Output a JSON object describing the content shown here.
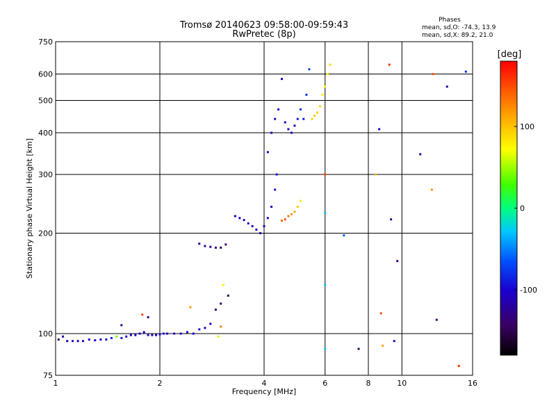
{
  "chart_data": {
    "type": "scatter",
    "title": "Tromsø 20140623 09:58:00-09:59:43",
    "subtitle": "RwPretec (8p)",
    "xlabel": "Frequency [MHz]",
    "ylabel": "Stationary phase Virtual Height [km]",
    "x_scale": "log",
    "y_scale": "log",
    "xlim": [
      1,
      16
    ],
    "ylim": [
      75,
      750
    ],
    "x_ticks": [
      1,
      2,
      4,
      6,
      8,
      10,
      16
    ],
    "y_ticks": [
      75,
      100,
      200,
      300,
      400,
      500,
      600,
      750
    ],
    "grid": true,
    "stats": {
      "title": "Phases",
      "line1": "mean, sd,O: -74.3, 13.9",
      "line2": "mean, sd,X:  89.2, 21.0"
    },
    "colorbar": {
      "label": "[deg]",
      "range": [
        -180,
        180
      ],
      "ticks": [
        100,
        0,
        -100
      ],
      "tick_labels": [
        "100",
        "0",
        "-100"
      ]
    },
    "series": [
      {
        "points": [
          [
            1.02,
            96,
            -150
          ],
          [
            1.05,
            98,
            -110
          ],
          [
            1.08,
            95,
            -110
          ],
          [
            1.12,
            95,
            -110
          ],
          [
            1.16,
            95,
            -105
          ],
          [
            1.2,
            95,
            -105
          ],
          [
            1.25,
            96,
            -100
          ],
          [
            1.3,
            95.5,
            -100
          ],
          [
            1.35,
            96,
            -100
          ],
          [
            1.4,
            96,
            -95
          ],
          [
            1.45,
            97,
            -90
          ],
          [
            1.5,
            98,
            40
          ],
          [
            1.55,
            97,
            -95
          ],
          [
            1.6,
            98,
            -100
          ],
          [
            1.65,
            99,
            -100
          ],
          [
            1.7,
            99,
            -100
          ],
          [
            1.75,
            100,
            -110
          ],
          [
            1.8,
            101,
            -100
          ],
          [
            1.85,
            99,
            -95
          ],
          [
            1.9,
            99,
            -110
          ],
          [
            1.95,
            99,
            -100
          ],
          [
            2.0,
            99.5,
            -105
          ],
          [
            2.05,
            100,
            -110
          ],
          [
            2.1,
            100,
            -100
          ],
          [
            2.2,
            100,
            -110
          ],
          [
            2.3,
            100,
            -110
          ],
          [
            2.4,
            101,
            -105
          ],
          [
            2.5,
            100,
            -100
          ],
          [
            2.6,
            103,
            -95
          ],
          [
            2.7,
            104,
            -100
          ],
          [
            2.8,
            107,
            -100
          ],
          [
            1.55,
            106,
            -120
          ],
          [
            1.85,
            112,
            -130
          ],
          [
            1.78,
            114,
            150
          ],
          [
            2.45,
            120,
            120
          ],
          [
            2.9,
            118,
            -140
          ],
          [
            3.0,
            123,
            -140
          ],
          [
            3.15,
            130,
            -150
          ],
          [
            3.0,
            105,
            130
          ],
          [
            2.95,
            98,
            60
          ],
          [
            3.05,
            140,
            80
          ],
          [
            2.6,
            186,
            -120
          ],
          [
            2.7,
            183,
            -125
          ],
          [
            2.8,
            182,
            -130
          ],
          [
            2.9,
            181,
            -140
          ],
          [
            3.0,
            181,
            -150
          ],
          [
            3.1,
            185,
            -135
          ],
          [
            3.3,
            225,
            -105
          ],
          [
            3.4,
            222,
            -100
          ],
          [
            3.5,
            219,
            -100
          ],
          [
            3.6,
            214,
            -100
          ],
          [
            3.7,
            210,
            -105
          ],
          [
            3.8,
            205,
            -110
          ],
          [
            3.9,
            200,
            -115
          ],
          [
            4.0,
            210,
            -115
          ],
          [
            4.1,
            222,
            -110
          ],
          [
            4.2,
            240,
            -105
          ],
          [
            4.3,
            270,
            -95
          ],
          [
            4.35,
            300,
            -90
          ],
          [
            4.1,
            350,
            -100
          ],
          [
            4.2,
            400,
            -110
          ],
          [
            4.3,
            440,
            -110
          ],
          [
            4.4,
            470,
            -100
          ],
          [
            4.5,
            580,
            -100
          ],
          [
            4.6,
            430,
            -100
          ],
          [
            4.7,
            410,
            -105
          ],
          [
            4.8,
            400,
            -110
          ],
          [
            4.9,
            420,
            -100
          ],
          [
            5.0,
            440,
            -90
          ],
          [
            5.1,
            470,
            -80
          ],
          [
            5.2,
            440,
            -90
          ],
          [
            5.3,
            520,
            -80
          ],
          [
            5.4,
            620,
            -70
          ],
          [
            4.5,
            218,
            140
          ],
          [
            4.6,
            220,
            150
          ],
          [
            4.7,
            225,
            130
          ],
          [
            4.8,
            228,
            120
          ],
          [
            4.9,
            232,
            110
          ],
          [
            5.0,
            240,
            95
          ],
          [
            5.1,
            250,
            80
          ],
          [
            5.5,
            440,
            90
          ],
          [
            5.6,
            450,
            95
          ],
          [
            5.7,
            460,
            95
          ],
          [
            5.8,
            480,
            90
          ],
          [
            5.9,
            520,
            80
          ],
          [
            6.0,
            550,
            75
          ],
          [
            6.1,
            600,
            75
          ],
          [
            6.2,
            640,
            90
          ],
          [
            6.0,
            140,
            -30
          ],
          [
            6.0,
            90,
            -30
          ],
          [
            6.0,
            230,
            -30
          ],
          [
            6.0,
            300,
            150
          ],
          [
            6.8,
            197,
            -60
          ],
          [
            7.5,
            90,
            -140
          ],
          [
            8.4,
            300,
            100
          ],
          [
            8.7,
            115,
            150
          ],
          [
            8.6,
            410,
            -100
          ],
          [
            8.8,
            92,
            110
          ],
          [
            9.2,
            640,
            160
          ],
          [
            9.3,
            220,
            -120
          ],
          [
            9.5,
            95,
            -110
          ],
          [
            9.7,
            165,
            -130
          ],
          [
            11.3,
            345,
            -120
          ],
          [
            12.3,
            600,
            150
          ],
          [
            12.6,
            110,
            -140
          ],
          [
            12.2,
            270,
            120
          ],
          [
            13.5,
            550,
            -120
          ],
          [
            14.6,
            80,
            160
          ],
          [
            15.3,
            610,
            -80
          ]
        ]
      }
    ]
  }
}
